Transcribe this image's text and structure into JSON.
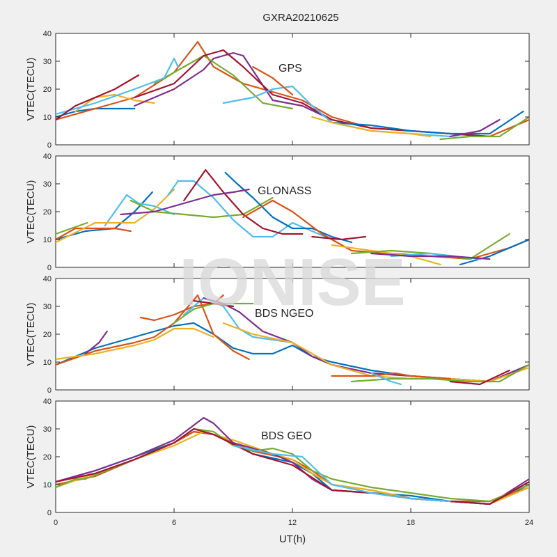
{
  "chart_data": [
    {
      "type": "line",
      "title": "GXRA20210625",
      "panel_label": "GPS",
      "ylabel": "VTEC(TECU)",
      "xlabel": "",
      "xlim": [
        0,
        24
      ],
      "ylim": [
        0,
        40
      ],
      "xticks": [
        0,
        6,
        12,
        18,
        24
      ],
      "yticks": [
        0,
        10,
        20,
        30,
        40
      ],
      "grid": false,
      "series": [
        {
          "color": "#0072BD",
          "x": [
            0,
            1,
            2,
            3,
            4
          ],
          "y": [
            10,
            12,
            13,
            13,
            13
          ]
        },
        {
          "color": "#D95319",
          "x": [
            0,
            2,
            4,
            6,
            7.2,
            8,
            9.5,
            11,
            12.5,
            14,
            16,
            18,
            20,
            22,
            24
          ],
          "y": [
            9,
            13,
            17,
            26,
            37,
            28,
            22,
            19,
            16,
            10,
            6,
            5,
            4,
            3,
            9
          ]
        },
        {
          "color": "#EDB120",
          "x": [
            1,
            2,
            3,
            4,
            5
          ],
          "y": [
            12,
            17,
            18,
            16,
            15
          ]
        },
        {
          "color": "#7E2F8E",
          "x": [
            4,
            6,
            7.5,
            8,
            9,
            9.5,
            11,
            12.5,
            14
          ],
          "y": [
            14,
            20,
            27,
            31,
            33,
            32,
            16,
            14,
            9
          ]
        },
        {
          "color": "#77AC30",
          "x": [
            5,
            6.5,
            7.5,
            9,
            10.5,
            12
          ],
          "y": [
            22,
            28,
            32,
            25,
            15,
            13
          ]
        },
        {
          "color": "#4DBEEE",
          "x": [
            0,
            2,
            4,
            5.5,
            6,
            6.2
          ],
          "y": [
            11,
            15,
            20,
            24,
            31,
            28
          ]
        },
        {
          "color": "#A2142F",
          "x": [
            0,
            1,
            2,
            3,
            4.2
          ],
          "y": [
            9,
            14,
            17,
            20,
            25
          ]
        },
        {
          "color": "#A2142F",
          "x": [
            4,
            6,
            7.5,
            8.5,
            9.5,
            11,
            12.5,
            14,
            16,
            18,
            20,
            22
          ],
          "y": [
            17,
            22,
            32,
            34,
            28,
            18,
            15,
            9,
            6,
            5,
            4,
            3
          ]
        },
        {
          "color": "#4DBEEE",
          "x": [
            8.5,
            10,
            11,
            12,
            13,
            14,
            16,
            18,
            20
          ],
          "y": [
            15,
            17,
            20,
            21,
            14,
            8,
            5,
            4,
            3
          ]
        },
        {
          "color": "#0072BD",
          "x": [
            14,
            16,
            18,
            20,
            22,
            23.7
          ],
          "y": [
            8,
            7,
            5,
            4,
            4,
            12
          ]
        },
        {
          "color": "#EDB120",
          "x": [
            13,
            14,
            16,
            18,
            19
          ],
          "y": [
            10,
            8,
            5,
            4,
            3
          ]
        },
        {
          "color": "#77AC30",
          "x": [
            19.5,
            21,
            22.5,
            24
          ],
          "y": [
            2,
            3,
            3,
            10
          ]
        },
        {
          "color": "#D95319",
          "x": [
            10,
            11,
            12
          ],
          "y": [
            28,
            24,
            18
          ]
        },
        {
          "color": "#7E2F8E",
          "x": [
            20,
            21.5,
            22.5
          ],
          "y": [
            3,
            5,
            9
          ]
        }
      ]
    },
    {
      "type": "line",
      "panel_label": "GLONASS",
      "ylabel": "VTEC(TECU)",
      "xlabel": "",
      "xlim": [
        0,
        24
      ],
      "ylim": [
        0,
        40
      ],
      "xticks": [
        0,
        6,
        12,
        18,
        24
      ],
      "yticks": [
        0,
        10,
        20,
        30,
        40
      ],
      "grid": false,
      "series": [
        {
          "color": "#0072BD",
          "x": [
            0,
            1.5,
            3,
            4,
            4.9
          ],
          "y": [
            10,
            13,
            14,
            20,
            27
          ]
        },
        {
          "color": "#D95319",
          "x": [
            0,
            1,
            2,
            3,
            3.8
          ],
          "y": [
            10,
            14,
            14,
            14,
            13
          ]
        },
        {
          "color": "#77AC30",
          "x": [
            0,
            0.8,
            1.6
          ],
          "y": [
            12,
            14,
            16
          ]
        },
        {
          "color": "#4DBEEE",
          "x": [
            2.5,
            3,
            3.6,
            4.2,
            5,
            6
          ],
          "y": [
            15,
            20,
            26,
            23,
            22,
            19
          ]
        },
        {
          "color": "#EDB120",
          "x": [
            0,
            2,
            4,
            5,
            6
          ],
          "y": [
            9,
            16,
            16,
            21,
            28
          ]
        },
        {
          "color": "#77AC30",
          "x": [
            3.8,
            5,
            6.5,
            8,
            9.5,
            11
          ],
          "y": [
            24,
            20,
            19,
            18,
            19,
            25
          ]
        },
        {
          "color": "#4DBEEE",
          "x": [
            5.7,
            6.2,
            7,
            8,
            9,
            10,
            11,
            12,
            13,
            14
          ],
          "y": [
            26,
            31,
            31,
            25,
            17,
            11,
            11,
            16,
            13,
            10
          ]
        },
        {
          "color": "#A2142F",
          "x": [
            6.5,
            7.6,
            8.5,
            9.5,
            10.5,
            11.5,
            12.5
          ],
          "y": [
            24,
            35,
            27,
            19,
            14,
            12,
            12
          ]
        },
        {
          "color": "#0072BD",
          "x": [
            8.6,
            9.2,
            10,
            11,
            12,
            13,
            14,
            15
          ],
          "y": [
            34,
            30,
            25,
            18,
            14,
            14,
            11,
            9
          ]
        },
        {
          "color": "#7E2F8E",
          "x": [
            3.3,
            5,
            7,
            8,
            9,
            9.8
          ],
          "y": [
            19,
            20,
            24,
            26,
            27,
            28
          ]
        },
        {
          "color": "#D95319",
          "x": [
            9.5,
            11,
            12,
            13.5,
            15,
            17,
            19,
            21,
            23,
            24
          ],
          "y": [
            18,
            24,
            20,
            12,
            6,
            5,
            4,
            3,
            7,
            10
          ]
        },
        {
          "color": "#EDB120",
          "x": [
            14,
            16,
            18,
            19.5
          ],
          "y": [
            8,
            6,
            4,
            1
          ]
        },
        {
          "color": "#77AC30",
          "x": [
            15,
            17,
            19,
            21,
            23
          ],
          "y": [
            5,
            6,
            5,
            3,
            12
          ]
        },
        {
          "color": "#0072BD",
          "x": [
            20.5,
            22,
            24
          ],
          "y": [
            1,
            4,
            10
          ]
        },
        {
          "color": "#4DBEEE",
          "x": [
            17,
            19,
            21.5
          ],
          "y": [
            4,
            5,
            3
          ]
        },
        {
          "color": "#7E2F8E",
          "x": [
            16,
            18,
            20,
            22
          ],
          "y": [
            5,
            4,
            4,
            3
          ]
        },
        {
          "color": "#A2142F",
          "x": [
            13,
            14.5,
            15.7
          ],
          "y": [
            11,
            10,
            11
          ]
        }
      ]
    },
    {
      "type": "line",
      "panel_label": "BDS NGEO",
      "ylabel": "VTEC(TECU)",
      "xlabel": "",
      "xlim": [
        0,
        24
      ],
      "ylim": [
        0,
        40
      ],
      "xticks": [
        0,
        6,
        12,
        18,
        24
      ],
      "yticks": [
        0,
        10,
        20,
        30,
        40
      ],
      "grid": false,
      "series": [
        {
          "color": "#0072BD",
          "x": [
            0,
            2,
            4,
            6,
            7,
            8,
            9,
            10,
            11,
            12,
            13,
            14,
            16,
            18,
            20,
            22,
            24
          ],
          "y": [
            9,
            15,
            19,
            23,
            24,
            20,
            15,
            13,
            13,
            16,
            12,
            10,
            7,
            5,
            4,
            3,
            9
          ]
        },
        {
          "color": "#D95319",
          "x": [
            0,
            2,
            4,
            5,
            6,
            7.2,
            8,
            9,
            9.8
          ],
          "y": [
            9,
            14,
            17,
            19,
            24,
            34,
            20,
            14,
            11
          ]
        },
        {
          "color": "#EDB120",
          "x": [
            0,
            2,
            4,
            5,
            6,
            7,
            8
          ],
          "y": [
            11,
            13,
            16,
            18,
            22,
            22,
            19
          ]
        },
        {
          "color": "#7E2F8E",
          "x": [
            1.5,
            2.2,
            2.6
          ],
          "y": [
            13,
            17,
            21
          ]
        },
        {
          "color": "#D95319",
          "x": [
            4.3,
            5,
            6,
            7,
            8,
            8.5
          ],
          "y": [
            26,
            25,
            27,
            30,
            31,
            34
          ]
        },
        {
          "color": "#77AC30",
          "x": [
            6,
            7,
            8,
            9,
            10
          ],
          "y": [
            24,
            29,
            31,
            31,
            31
          ]
        },
        {
          "color": "#4DBEEE",
          "x": [
            6.5,
            7.5,
            8.5,
            9.3,
            10,
            12,
            14,
            16
          ],
          "y": [
            27,
            33,
            30,
            22,
            19,
            17,
            9,
            5
          ]
        },
        {
          "color": "#7E2F8E",
          "x": [
            7.5,
            8.5,
            9.3,
            10.5,
            12,
            13,
            14,
            16,
            18,
            20,
            22,
            24
          ],
          "y": [
            33,
            31,
            28,
            21,
            17,
            12,
            9,
            6,
            5,
            4,
            3,
            9
          ]
        },
        {
          "color": "#A2142F",
          "x": [
            7,
            8,
            9
          ],
          "y": [
            32,
            31,
            30
          ]
        },
        {
          "color": "#EDB120",
          "x": [
            8.5,
            10,
            12,
            14,
            16,
            18,
            20,
            22,
            24
          ],
          "y": [
            24,
            20,
            17,
            9,
            5,
            4,
            4,
            3,
            8
          ]
        },
        {
          "color": "#D95319",
          "x": [
            14,
            16,
            17.2,
            18,
            20
          ],
          "y": [
            5,
            5,
            6,
            5,
            4
          ]
        },
        {
          "color": "#77AC30",
          "x": [
            15,
            17,
            19,
            21,
            22.5,
            24
          ],
          "y": [
            3,
            4,
            4,
            3,
            3,
            9
          ]
        },
        {
          "color": "#A2142F",
          "x": [
            20,
            21.5,
            23
          ],
          "y": [
            3,
            2,
            7
          ]
        },
        {
          "color": "#4DBEEE",
          "x": [
            16,
            17,
            17.5
          ],
          "y": [
            6,
            3,
            2
          ]
        }
      ]
    },
    {
      "type": "line",
      "panel_label": "BDS GEO",
      "ylabel": "VTEC(TECU)",
      "xlabel": "UT(h)",
      "xlim": [
        0,
        24
      ],
      "ylim": [
        0,
        40
      ],
      "xticks": [
        0,
        6,
        12,
        18,
        24
      ],
      "yticks": [
        0,
        10,
        20,
        30,
        40
      ],
      "grid": false,
      "series": [
        {
          "color": "#0072BD",
          "x": [
            0,
            1,
            2,
            4,
            6,
            7,
            8,
            9,
            10,
            12,
            13,
            14,
            16,
            18,
            20,
            22,
            24
          ],
          "y": [
            11,
            13,
            15,
            20,
            25,
            29,
            28,
            25,
            21,
            18,
            14,
            8,
            7,
            6,
            4,
            3,
            10
          ]
        },
        {
          "color": "#D95319",
          "x": [
            0,
            2,
            4,
            6,
            7,
            8,
            10,
            12,
            13,
            14,
            16,
            18,
            20,
            22,
            24
          ],
          "y": [
            10,
            13,
            19,
            25,
            29,
            28,
            22,
            19,
            15,
            10,
            8,
            5,
            4,
            4,
            9
          ]
        },
        {
          "color": "#EDB120",
          "x": [
            0,
            2,
            4,
            6,
            7.5,
            9,
            11,
            12,
            13,
            14,
            16,
            18,
            20,
            22,
            24
          ],
          "y": [
            9,
            14,
            19,
            24,
            29,
            26,
            21,
            19,
            14,
            10,
            8,
            5,
            4,
            3,
            9
          ]
        },
        {
          "color": "#7E2F8E",
          "x": [
            0,
            2,
            4,
            6,
            7.5,
            8,
            9,
            11,
            12,
            13,
            14,
            16,
            18,
            20,
            22,
            24
          ],
          "y": [
            11,
            15,
            20,
            26,
            34,
            32,
            25,
            21,
            18,
            12,
            8,
            7,
            5,
            4,
            3,
            12
          ]
        },
        {
          "color": "#77AC30",
          "x": [
            0,
            1,
            1.5,
            4,
            6,
            7,
            8,
            9,
            10,
            11,
            12,
            13,
            14,
            16,
            18,
            20,
            22,
            24
          ],
          "y": [
            9,
            12,
            12,
            19,
            25,
            30,
            29,
            24,
            22,
            23,
            21,
            15,
            12,
            9,
            7,
            5,
            4,
            10
          ]
        },
        {
          "color": "#A2142F",
          "x": [
            0,
            2,
            4,
            6,
            7,
            8,
            10,
            12,
            14,
            16,
            18,
            20,
            22,
            24
          ],
          "y": [
            11,
            14,
            19,
            25,
            30,
            28,
            21,
            17,
            8,
            7,
            5,
            4,
            3,
            11
          ]
        },
        {
          "color": "#4DBEEE",
          "x": [
            9,
            11,
            12.5,
            14,
            16,
            18,
            20
          ],
          "y": [
            24,
            21,
            20,
            10,
            7,
            5,
            4
          ]
        }
      ]
    }
  ],
  "watermark": "IONISE"
}
